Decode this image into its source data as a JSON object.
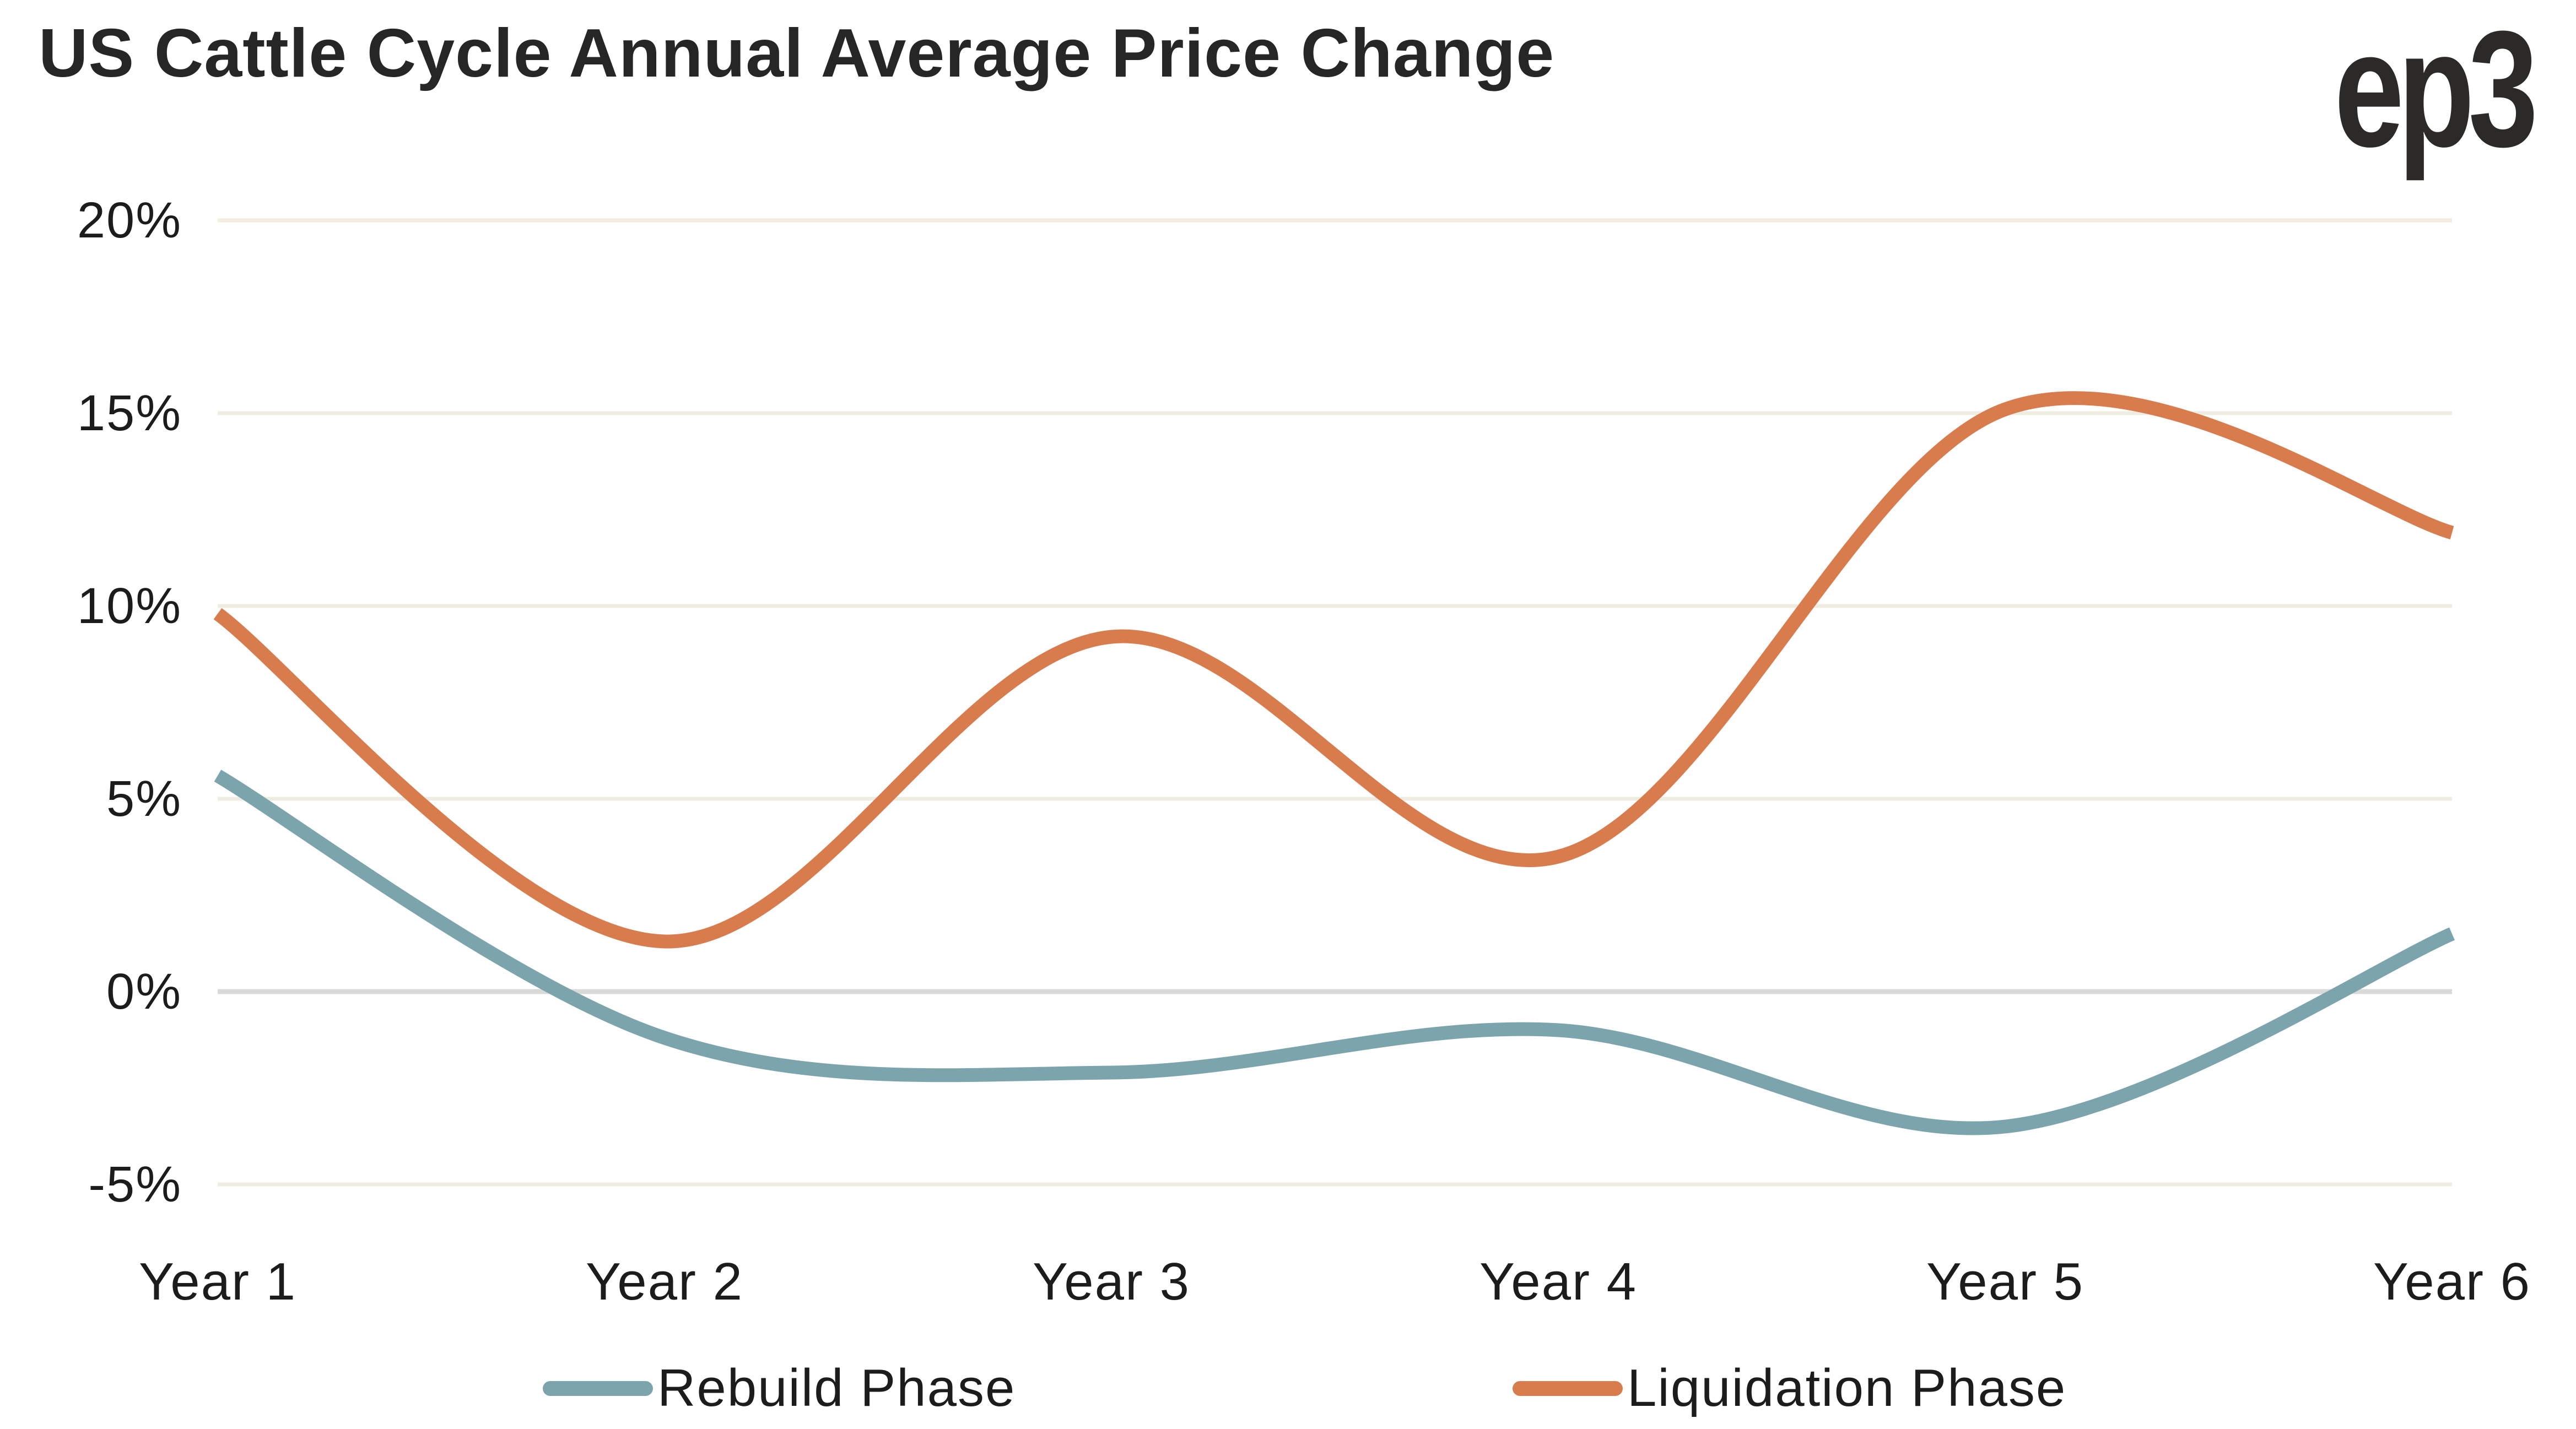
{
  "title": "US Cattle Cycle Annual Average Price Change",
  "logo": {
    "text": "ep3"
  },
  "chart_data": {
    "type": "line",
    "categories": [
      "Year 1",
      "Year 2",
      "Year 3",
      "Year 4",
      "Year 5",
      "Year 6"
    ],
    "series": [
      {
        "name": "Rebuild Phase",
        "color": "#7CA4AD",
        "values": [
          5.6,
          -1.2,
          -2.1,
          -1.0,
          -3.5,
          1.5
        ]
      },
      {
        "name": "Liquidation Phase",
        "color": "#D87C4E",
        "values": [
          9.8,
          1.3,
          9.2,
          3.5,
          15.1,
          11.9
        ]
      }
    ],
    "xlabel": "",
    "ylabel": "",
    "ylim": [
      -5,
      20
    ],
    "y_ticks": [
      20,
      15,
      10,
      5,
      0,
      -5
    ],
    "y_tick_suffix": "%",
    "grid": "horizontal",
    "smoothing": "spline",
    "legend_position": "bottom"
  },
  "colors": {
    "background": "#FFFFFF",
    "gridline": "#EFECE2",
    "zero_line": "#D9D9D9",
    "title_text": "#262626",
    "tick_text": "#1C1C1C",
    "logo_text": "#2B2A29"
  }
}
